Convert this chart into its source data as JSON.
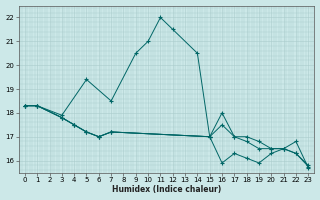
{
  "xlabel": "Humidex (Indice chaleur)",
  "ylabel": "",
  "background_color": "#cce8e8",
  "grid_color": "#aacccc",
  "line_color": "#006666",
  "xlim": [
    -0.5,
    23.5
  ],
  "ylim": [
    15.5,
    22.5
  ],
  "xticks": [
    0,
    1,
    2,
    3,
    4,
    5,
    6,
    7,
    8,
    9,
    10,
    11,
    12,
    13,
    14,
    15,
    16,
    17,
    18,
    19,
    20,
    21,
    22,
    23
  ],
  "yticks": [
    16,
    17,
    18,
    19,
    20,
    21,
    22
  ],
  "lines": [
    {
      "x": [
        0,
        1,
        3,
        5,
        7,
        9,
        10,
        11,
        12,
        14,
        15
      ],
      "y": [
        18.3,
        18.3,
        17.9,
        19.4,
        18.5,
        20.5,
        21.0,
        22.0,
        21.5,
        20.5,
        17.0
      ]
    },
    {
      "x": [
        0,
        1,
        3,
        4,
        5,
        6,
        7,
        15,
        16,
        17,
        18,
        19,
        20,
        21,
        22,
        23
      ],
      "y": [
        18.3,
        18.3,
        17.8,
        17.5,
        17.2,
        17.0,
        17.2,
        17.0,
        17.5,
        17.0,
        17.0,
        16.8,
        16.5,
        16.5,
        16.3,
        15.8
      ]
    },
    {
      "x": [
        0,
        1,
        3,
        4,
        5,
        6,
        7,
        15,
        16,
        17,
        18,
        19,
        20,
        21,
        22,
        23
      ],
      "y": [
        18.3,
        18.3,
        17.8,
        17.5,
        17.2,
        17.0,
        17.2,
        17.0,
        15.9,
        16.3,
        16.1,
        15.9,
        16.3,
        16.5,
        16.3,
        15.75
      ]
    },
    {
      "x": [
        0,
        1,
        3,
        4,
        5,
        6,
        7,
        15,
        16,
        17,
        18,
        19,
        20,
        21,
        22,
        23
      ],
      "y": [
        18.3,
        18.3,
        17.8,
        17.5,
        17.2,
        17.0,
        17.2,
        17.0,
        18.0,
        17.0,
        16.8,
        16.5,
        16.5,
        16.5,
        16.8,
        15.7
      ]
    }
  ]
}
